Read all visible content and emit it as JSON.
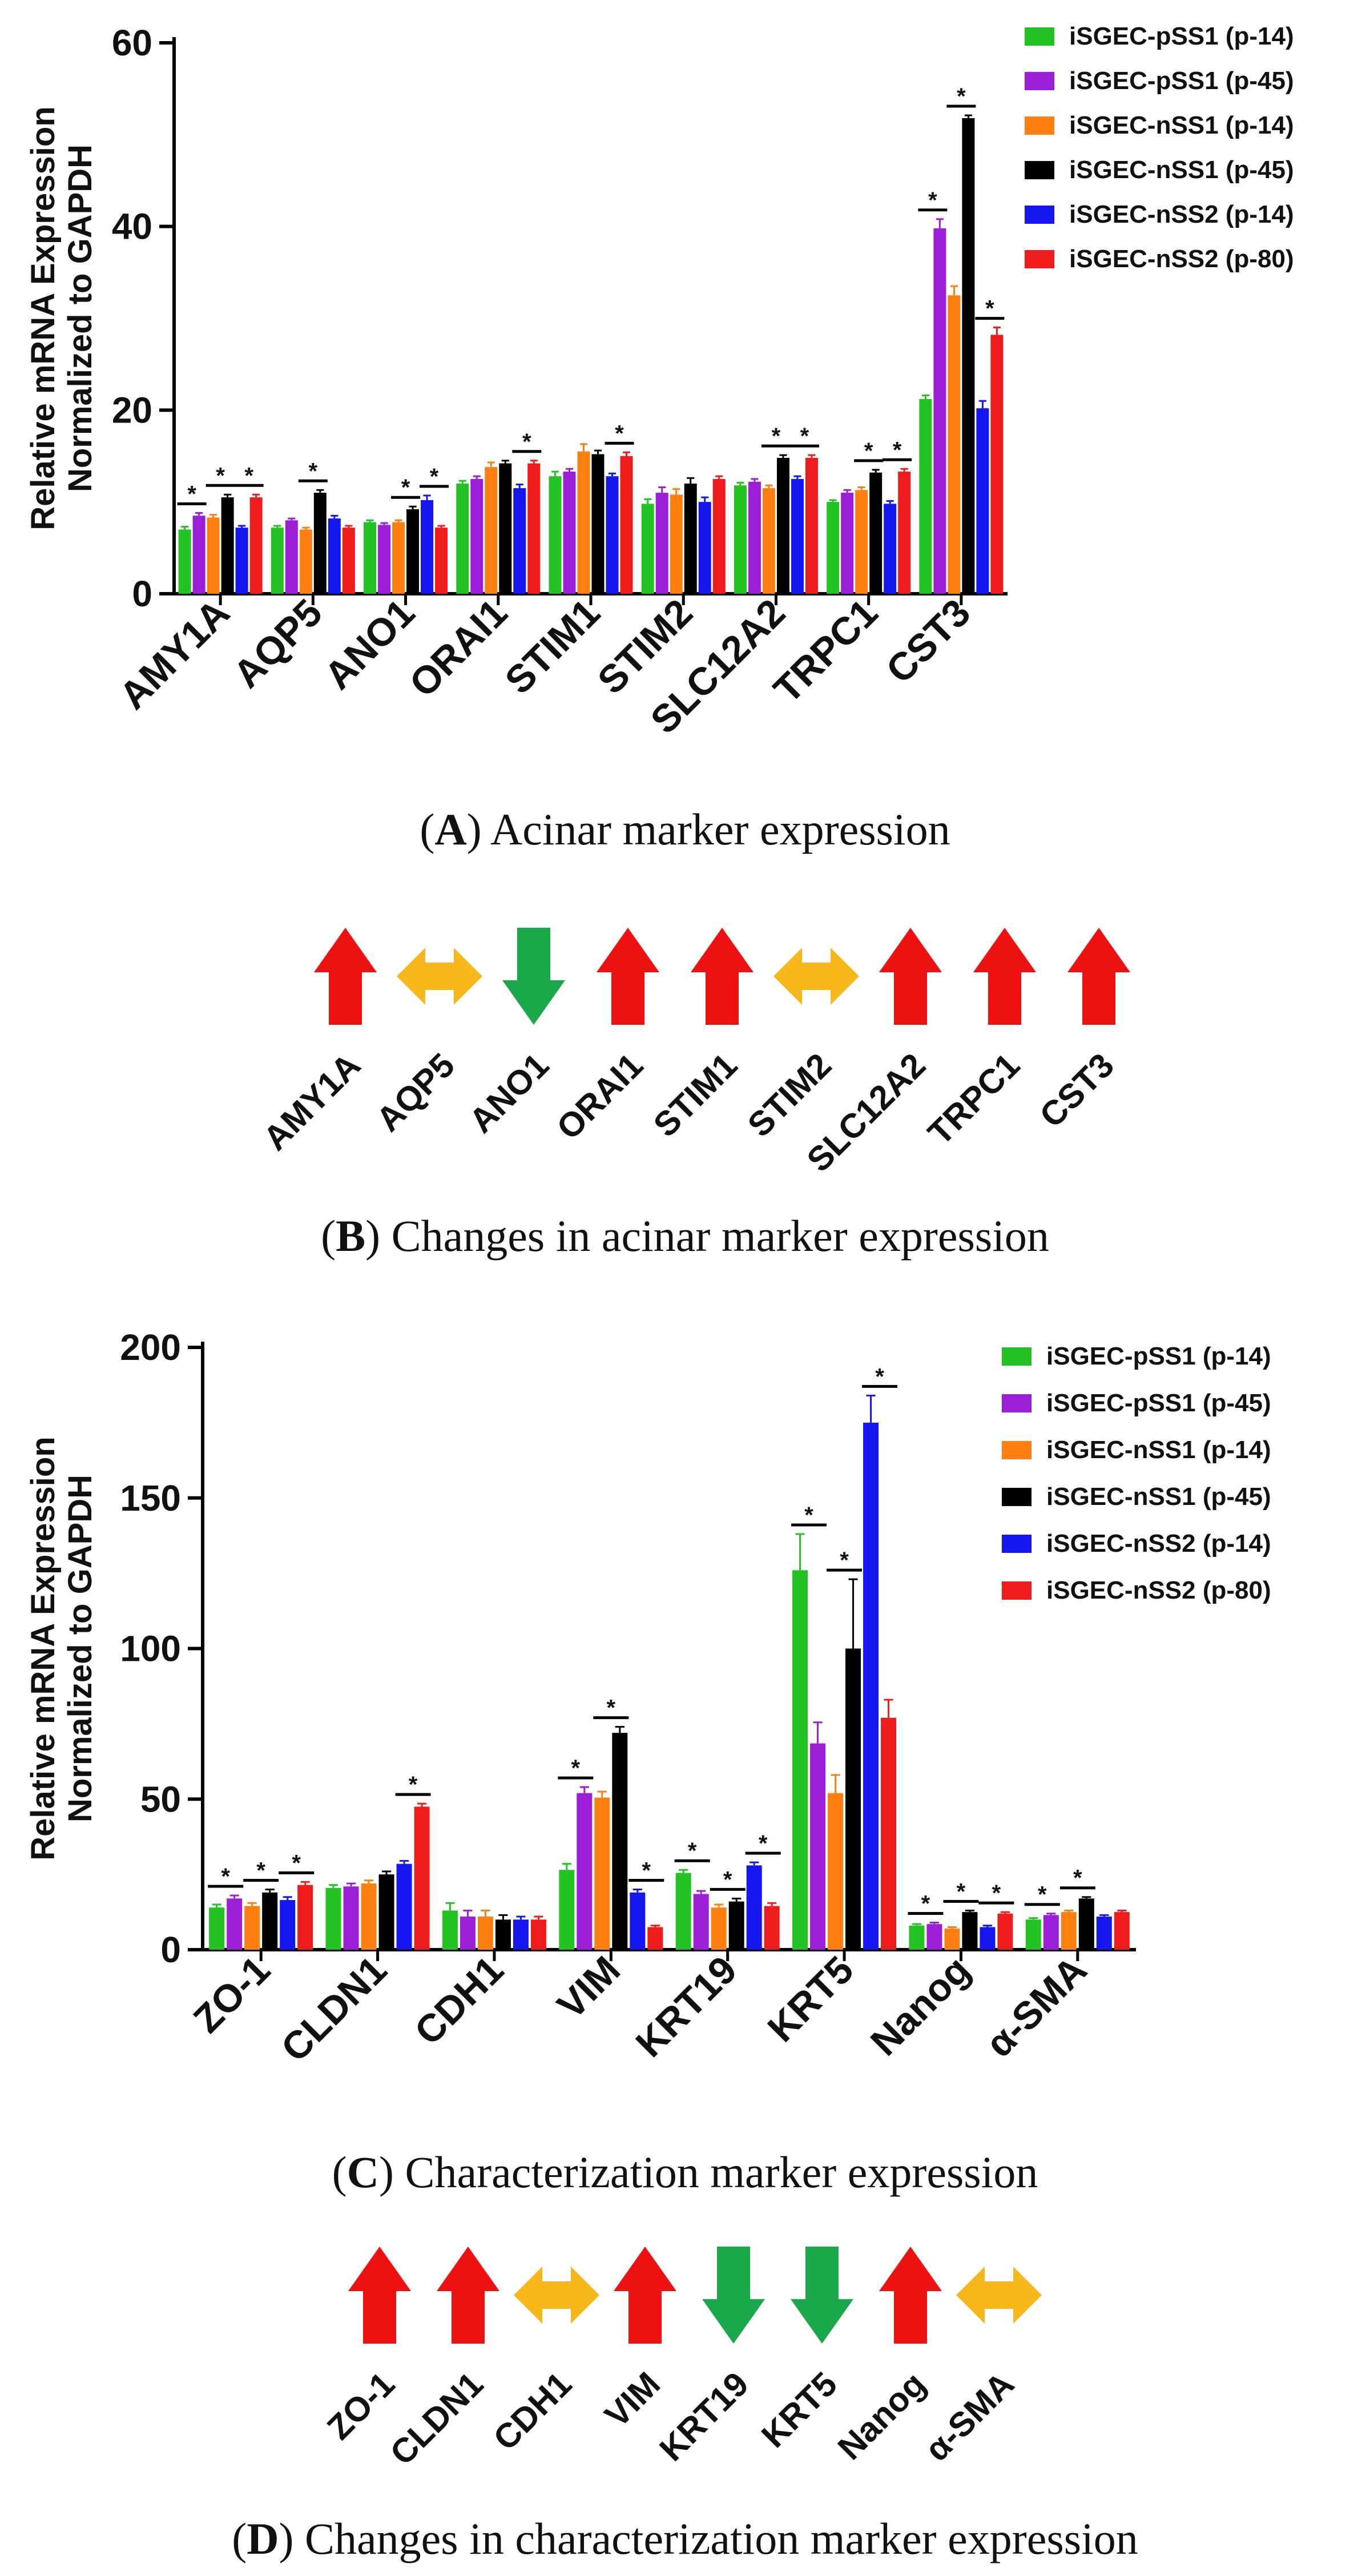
{
  "colors": {
    "series": [
      "#22c322",
      "#9b1fd6",
      "#ff8010",
      "#000000",
      "#1616ee",
      "#ee1c1c"
    ],
    "up": "#ee1111",
    "down": "#1aa84a",
    "neutral": "#f6b81a"
  },
  "panels": {
    "A": {
      "letter": "A",
      "caption": "Acinar marker expression"
    },
    "B": {
      "letter": "B",
      "caption": "Changes in acinar marker expression"
    },
    "C": {
      "letter": "C",
      "caption": "Characterization marker expression"
    },
    "D": {
      "letter": "D",
      "caption": "Changes in characterization marker expression"
    }
  },
  "chart_data": [
    {
      "type": "bar",
      "panel": "A",
      "title": "",
      "ylabel_lines": [
        "Relative mRNA Expression",
        "Normalized to GAPDH"
      ],
      "ylim": [
        0,
        60
      ],
      "yticks": [
        0,
        20,
        40,
        60
      ],
      "categories": [
        "AMY1A",
        "AQP5",
        "ANO1",
        "ORAI1",
        "STIM1",
        "STIM2",
        "SLC12A2",
        "TRPC1",
        "CST3"
      ],
      "series": [
        {
          "name": "iSGEC-pSS1 (p-14)",
          "values": [
            7,
            7.2,
            7.8,
            12,
            12.8,
            9.8,
            11.8,
            10,
            21.2
          ],
          "errors": [
            0.3,
            0.2,
            0.2,
            0.3,
            0.5,
            0.5,
            0.3,
            0.2,
            0.4
          ]
        },
        {
          "name": "iSGEC-pSS1 (p-45)",
          "values": [
            8.5,
            8,
            7.5,
            12.5,
            13.3,
            11,
            12.2,
            11,
            39.8
          ],
          "errors": [
            0.3,
            0.2,
            0.2,
            0.3,
            0.3,
            0.6,
            0.3,
            0.3,
            1
          ]
        },
        {
          "name": "iSGEC-nSS1 (p-14)",
          "values": [
            8.3,
            7,
            7.8,
            13.8,
            15.5,
            10.8,
            11.5,
            11.3,
            32.5
          ],
          "errors": [
            0.3,
            0.2,
            0.2,
            0.5,
            0.8,
            0.6,
            0.3,
            0.3,
            1
          ]
        },
        {
          "name": "iSGEC-nSS1 (p-45)",
          "values": [
            10.5,
            11,
            9.2,
            14.2,
            15.2,
            12,
            14.8,
            13.2,
            51.8
          ],
          "errors": [
            0.3,
            0.3,
            0.3,
            0.3,
            0.4,
            0.6,
            0.3,
            0.3,
            0.3
          ]
        },
        {
          "name": "iSGEC-nSS2 (p-14)",
          "values": [
            7.2,
            8.2,
            10.2,
            11.5,
            12.8,
            10,
            12.5,
            9.8,
            20.2
          ],
          "errors": [
            0.2,
            0.3,
            0.5,
            0.4,
            0.3,
            0.5,
            0.3,
            0.3,
            0.8
          ]
        },
        {
          "name": "iSGEC-nSS2 (p-80)",
          "values": [
            10.5,
            7.2,
            7.2,
            14.2,
            15,
            12.5,
            14.8,
            13.3,
            28.2
          ],
          "errors": [
            0.3,
            0.2,
            0.2,
            0.3,
            0.4,
            0.3,
            0.3,
            0.3,
            0.8
          ]
        }
      ],
      "significance": [
        {
          "category": 0,
          "from": 0,
          "to": 1,
          "label": "*"
        },
        {
          "category": 0,
          "from": 2,
          "to": 3,
          "label": "*"
        },
        {
          "category": 0,
          "from": 4,
          "to": 5,
          "label": "*"
        },
        {
          "category": 1,
          "from": 2,
          "to": 3,
          "label": "*"
        },
        {
          "category": 2,
          "from": 2,
          "to": 3,
          "label": "*"
        },
        {
          "category": 2,
          "from": 4,
          "to": 5,
          "label": "*"
        },
        {
          "category": 3,
          "from": 4,
          "to": 5,
          "label": "*"
        },
        {
          "category": 4,
          "from": 4,
          "to": 5,
          "label": "*"
        },
        {
          "category": 6,
          "from": 2,
          "to": 3,
          "label": "*"
        },
        {
          "category": 6,
          "from": 4,
          "to": 5,
          "label": "*"
        },
        {
          "category": 7,
          "from": 2,
          "to": 3,
          "label": "*"
        },
        {
          "category": 7,
          "from": 4,
          "to": 5,
          "label": "*"
        },
        {
          "category": 8,
          "from": 0,
          "to": 1,
          "label": "*"
        },
        {
          "category": 8,
          "from": 2,
          "to": 3,
          "label": "*"
        },
        {
          "category": 8,
          "from": 4,
          "to": 5,
          "label": "*"
        }
      ],
      "legend_position": "top-right"
    },
    {
      "type": "bar",
      "panel": "C",
      "title": "",
      "ylabel_lines": [
        "Relative mRNA Expression",
        "Normalized to GAPDH"
      ],
      "ylim": [
        0,
        200
      ],
      "yticks": [
        0,
        50,
        100,
        150,
        200
      ],
      "categories": [
        "ZO-1",
        "CLDN1",
        "CDH1",
        "VIM",
        "KRT19",
        "KRT5",
        "Nanog",
        "α-SMA"
      ],
      "series": [
        {
          "name": "iSGEC-pSS1 (p-14)",
          "values": [
            14,
            20.5,
            13,
            26.5,
            25.5,
            126,
            8,
            10
          ],
          "errors": [
            1,
            1,
            2.5,
            2,
            1,
            12,
            0.5,
            0.5
          ]
        },
        {
          "name": "iSGEC-pSS1 (p-45)",
          "values": [
            17,
            21,
            11,
            52,
            18.5,
            68.5,
            8.5,
            11.5
          ],
          "errors": [
            1,
            1,
            2,
            2,
            1,
            7,
            0.5,
            0.5
          ]
        },
        {
          "name": "iSGEC-nSS1 (p-14)",
          "values": [
            14.5,
            22,
            11,
            50.5,
            14,
            52,
            7,
            12.5
          ],
          "errors": [
            1,
            1,
            2,
            2,
            1,
            6,
            0.5,
            0.5
          ]
        },
        {
          "name": "iSGEC-nSS1 (p-45)",
          "values": [
            19,
            25,
            10,
            72,
            16,
            100,
            12.5,
            17
          ],
          "errors": [
            1,
            1,
            1.5,
            2,
            1,
            23,
            0.5,
            0.5
          ]
        },
        {
          "name": "iSGEC-nSS2 (p-14)",
          "values": [
            16.5,
            28.5,
            10,
            19,
            28,
            175,
            7.5,
            11
          ],
          "errors": [
            1,
            1,
            1,
            1,
            1,
            9,
            0.5,
            0.5
          ]
        },
        {
          "name": "iSGEC-nSS2 (p-80)",
          "values": [
            21.5,
            47.5,
            10,
            7.5,
            14.5,
            77,
            12,
            12.5
          ],
          "errors": [
            1,
            1,
            1,
            0.5,
            1,
            6,
            0.5,
            0.5
          ]
        }
      ],
      "significance": [
        {
          "category": 0,
          "from": 0,
          "to": 1,
          "label": "*"
        },
        {
          "category": 0,
          "from": 2,
          "to": 3,
          "label": "*"
        },
        {
          "category": 0,
          "from": 4,
          "to": 5,
          "label": "*"
        },
        {
          "category": 1,
          "from": 4,
          "to": 5,
          "label": "*"
        },
        {
          "category": 3,
          "from": 0,
          "to": 1,
          "label": "*"
        },
        {
          "category": 3,
          "from": 2,
          "to": 3,
          "label": "*"
        },
        {
          "category": 3,
          "from": 4,
          "to": 5,
          "label": "*"
        },
        {
          "category": 4,
          "from": 0,
          "to": 1,
          "label": "*"
        },
        {
          "category": 4,
          "from": 2,
          "to": 3,
          "label": "*"
        },
        {
          "category": 4,
          "from": 4,
          "to": 5,
          "label": "*"
        },
        {
          "category": 5,
          "from": 0,
          "to": 1,
          "label": "*"
        },
        {
          "category": 5,
          "from": 2,
          "to": 3,
          "label": "*"
        },
        {
          "category": 5,
          "from": 4,
          "to": 5,
          "label": "*"
        },
        {
          "category": 6,
          "from": 0,
          "to": 1,
          "label": "*"
        },
        {
          "category": 6,
          "from": 2,
          "to": 3,
          "label": "*"
        },
        {
          "category": 6,
          "from": 4,
          "to": 5,
          "label": "*"
        },
        {
          "category": 7,
          "from": 0,
          "to": 1,
          "label": "*"
        },
        {
          "category": 7,
          "from": 2,
          "to": 3,
          "label": "*"
        }
      ],
      "legend_position": "top-right"
    }
  ],
  "arrow_panels": [
    {
      "panel": "B",
      "markers": [
        {
          "label": "AMY1A",
          "direction": "up"
        },
        {
          "label": "AQP5",
          "direction": "neutral"
        },
        {
          "label": "ANO1",
          "direction": "down"
        },
        {
          "label": "ORAI1",
          "direction": "up"
        },
        {
          "label": "STIM1",
          "direction": "up"
        },
        {
          "label": "STIM2",
          "direction": "neutral"
        },
        {
          "label": "SLC12A2",
          "direction": "up"
        },
        {
          "label": "TRPC1",
          "direction": "up"
        },
        {
          "label": "CST3",
          "direction": "up"
        }
      ]
    },
    {
      "panel": "D",
      "markers": [
        {
          "label": "ZO-1",
          "direction": "up"
        },
        {
          "label": "CLDN1",
          "direction": "up"
        },
        {
          "label": "CDH1",
          "direction": "neutral"
        },
        {
          "label": "VIM",
          "direction": "up"
        },
        {
          "label": "KRT19",
          "direction": "down"
        },
        {
          "label": "KRT5",
          "direction": "down"
        },
        {
          "label": "Nanog",
          "direction": "up"
        },
        {
          "label": "α-SMA",
          "direction": "neutral"
        }
      ]
    }
  ]
}
